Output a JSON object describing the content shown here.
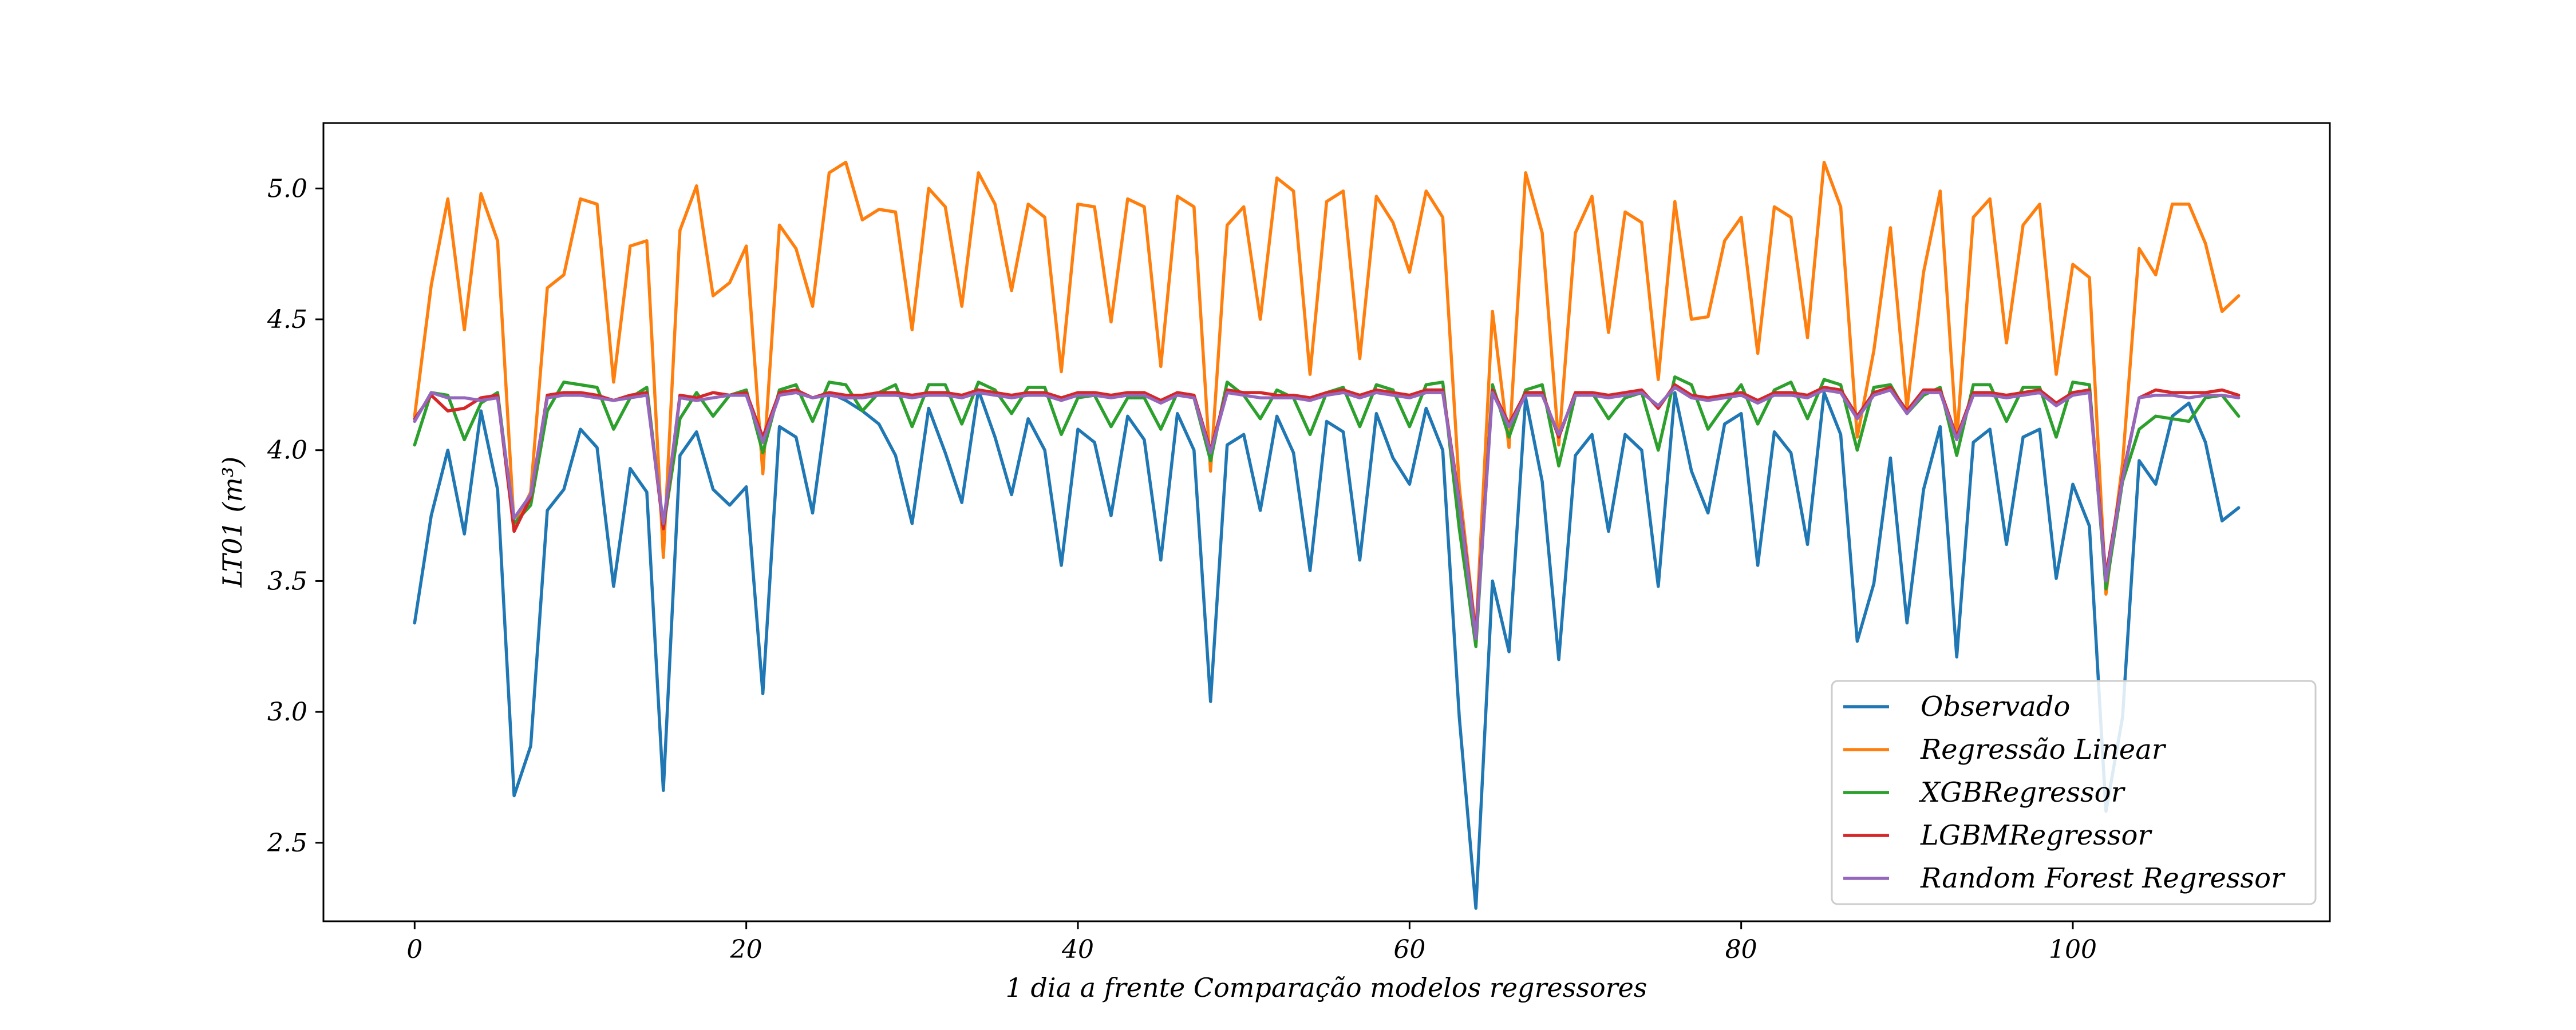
{
  "chart_data": {
    "type": "line",
    "title": "",
    "xlabel": "1 dia a frente Comparação modelos regressores",
    "ylabel": "LT01 (m³)",
    "xlim": [
      -5.5,
      115.5
    ],
    "ylim": [
      2.2,
      5.25
    ],
    "xticks": [
      0,
      20,
      40,
      60,
      80,
      100
    ],
    "yticks": [
      2.5,
      3.0,
      3.5,
      4.0,
      4.5,
      5.0
    ],
    "xtick_labels": [
      "0",
      "20",
      "40",
      "60",
      "80",
      "100"
    ],
    "ytick_labels": [
      "2.5",
      "3.0",
      "3.5",
      "4.0",
      "4.5",
      "5.0"
    ],
    "grid": false,
    "legend_position": "lower right",
    "series": [
      {
        "name": "Observado",
        "color": "#1f77b4",
        "values": [
          3.34,
          3.75,
          4.0,
          3.68,
          4.15,
          3.85,
          2.68,
          2.87,
          3.77,
          3.85,
          4.08,
          4.01,
          3.48,
          3.93,
          3.84,
          2.7,
          3.98,
          4.07,
          3.85,
          3.79,
          3.86,
          3.07,
          4.09,
          4.05,
          3.76,
          4.22,
          4.19,
          4.15,
          4.1,
          3.98,
          3.72,
          4.16,
          3.99,
          3.8,
          4.23,
          4.05,
          3.83,
          4.12,
          4.0,
          3.56,
          4.08,
          4.03,
          3.75,
          4.13,
          4.04,
          3.58,
          4.14,
          4.0,
          3.04,
          4.02,
          4.06,
          3.77,
          4.13,
          3.99,
          3.54,
          4.11,
          4.07,
          3.58,
          4.14,
          3.97,
          3.87,
          4.16,
          4.0,
          2.98,
          2.25,
          3.5,
          3.23,
          4.2,
          3.88,
          3.2,
          3.98,
          4.06,
          3.69,
          4.06,
          4.0,
          3.48,
          4.22,
          3.92,
          3.76,
          4.1,
          4.14,
          3.56,
          4.07,
          3.99,
          3.64,
          4.22,
          4.06,
          3.27,
          3.49,
          3.97,
          3.34,
          3.85,
          4.09,
          3.21,
          4.03,
          4.08,
          3.64,
          4.05,
          4.08,
          3.51,
          3.87,
          3.71,
          2.62,
          2.98,
          3.96,
          3.87,
          4.13,
          4.18,
          4.03,
          3.73,
          3.78
        ]
      },
      {
        "name": "Regressão Linear",
        "color": "#ff7f0e",
        "values": [
          4.13,
          4.63,
          4.96,
          4.46,
          4.98,
          4.8,
          3.71,
          3.84,
          4.62,
          4.67,
          4.96,
          4.94,
          4.26,
          4.78,
          4.8,
          3.59,
          4.84,
          5.01,
          4.59,
          4.64,
          4.78,
          3.91,
          4.86,
          4.77,
          4.55,
          5.06,
          5.1,
          4.88,
          4.92,
          4.91,
          4.46,
          5.0,
          4.93,
          4.55,
          5.06,
          4.94,
          4.61,
          4.94,
          4.89,
          4.3,
          4.94,
          4.93,
          4.49,
          4.96,
          4.93,
          4.32,
          4.97,
          4.93,
          3.92,
          4.86,
          4.93,
          4.5,
          5.04,
          4.99,
          4.29,
          4.95,
          4.99,
          4.35,
          4.97,
          4.87,
          4.68,
          4.99,
          4.89,
          3.86,
          3.3,
          4.53,
          4.01,
          5.06,
          4.83,
          4.02,
          4.83,
          4.97,
          4.45,
          4.91,
          4.87,
          4.27,
          4.95,
          4.5,
          4.51,
          4.8,
          4.89,
          4.37,
          4.93,
          4.89,
          4.43,
          5.1,
          4.93,
          4.05,
          4.38,
          4.85,
          4.16,
          4.68,
          4.99,
          4.04,
          4.89,
          4.96,
          4.41,
          4.86,
          4.94,
          4.29,
          4.71,
          4.66,
          3.45,
          3.95,
          4.77,
          4.67,
          4.94,
          4.94,
          4.79,
          4.53,
          4.59
        ]
      },
      {
        "name": "XGBRegressor",
        "color": "#2ca02c",
        "values": [
          4.02,
          4.22,
          4.21,
          4.04,
          4.18,
          4.22,
          3.72,
          3.79,
          4.15,
          4.26,
          4.25,
          4.24,
          4.08,
          4.2,
          4.24,
          3.7,
          4.12,
          4.22,
          4.13,
          4.21,
          4.23,
          3.99,
          4.23,
          4.25,
          4.11,
          4.26,
          4.25,
          4.15,
          4.22,
          4.25,
          4.09,
          4.25,
          4.25,
          4.1,
          4.26,
          4.23,
          4.14,
          4.24,
          4.24,
          4.06,
          4.2,
          4.21,
          4.09,
          4.2,
          4.2,
          4.08,
          4.22,
          4.2,
          3.96,
          4.26,
          4.21,
          4.12,
          4.23,
          4.2,
          4.06,
          4.22,
          4.24,
          4.09,
          4.25,
          4.23,
          4.09,
          4.25,
          4.26,
          3.7,
          3.25,
          4.25,
          4.05,
          4.23,
          4.25,
          3.94,
          4.21,
          4.22,
          4.12,
          4.2,
          4.22,
          4.0,
          4.28,
          4.25,
          4.08,
          4.17,
          4.25,
          4.1,
          4.23,
          4.26,
          4.12,
          4.27,
          4.25,
          4.0,
          4.24,
          4.25,
          4.14,
          4.21,
          4.24,
          3.98,
          4.25,
          4.25,
          4.11,
          4.24,
          4.24,
          4.05,
          4.26,
          4.25,
          3.47,
          3.88,
          4.08,
          4.13,
          4.12,
          4.11,
          4.2,
          4.21,
          4.13
        ]
      },
      {
        "name": "LGBMRegressor",
        "color": "#d62728",
        "values": [
          4.12,
          4.21,
          4.15,
          4.16,
          4.2,
          4.21,
          3.69,
          3.82,
          4.21,
          4.22,
          4.22,
          4.21,
          4.19,
          4.21,
          4.22,
          3.7,
          4.21,
          4.2,
          4.22,
          4.21,
          4.22,
          4.05,
          4.22,
          4.23,
          4.2,
          4.22,
          4.21,
          4.21,
          4.22,
          4.22,
          4.21,
          4.22,
          4.22,
          4.21,
          4.23,
          4.22,
          4.21,
          4.22,
          4.22,
          4.2,
          4.22,
          4.22,
          4.21,
          4.22,
          4.22,
          4.19,
          4.22,
          4.21,
          4.0,
          4.23,
          4.22,
          4.22,
          4.21,
          4.21,
          4.2,
          4.22,
          4.23,
          4.21,
          4.23,
          4.22,
          4.21,
          4.23,
          4.23,
          3.81,
          3.3,
          4.23,
          4.1,
          4.22,
          4.22,
          4.05,
          4.22,
          4.22,
          4.21,
          4.22,
          4.23,
          4.16,
          4.25,
          4.21,
          4.2,
          4.21,
          4.22,
          4.19,
          4.22,
          4.22,
          4.21,
          4.24,
          4.23,
          4.13,
          4.22,
          4.24,
          4.15,
          4.23,
          4.23,
          4.05,
          4.22,
          4.22,
          4.21,
          4.22,
          4.23,
          4.18,
          4.22,
          4.23,
          3.52,
          3.9,
          4.2,
          4.23,
          4.22,
          4.22,
          4.22,
          4.23,
          4.21
        ]
      },
      {
        "name": "Random Forest Regressor",
        "color": "#9467bd",
        "values": [
          4.11,
          4.22,
          4.2,
          4.2,
          4.19,
          4.2,
          3.74,
          3.83,
          4.2,
          4.21,
          4.21,
          4.2,
          4.19,
          4.2,
          4.21,
          3.72,
          4.2,
          4.19,
          4.2,
          4.21,
          4.21,
          4.03,
          4.21,
          4.22,
          4.2,
          4.21,
          4.2,
          4.2,
          4.21,
          4.21,
          4.2,
          4.21,
          4.21,
          4.2,
          4.22,
          4.21,
          4.2,
          4.21,
          4.21,
          4.19,
          4.21,
          4.21,
          4.2,
          4.21,
          4.21,
          4.18,
          4.21,
          4.2,
          3.99,
          4.22,
          4.21,
          4.2,
          4.2,
          4.2,
          4.19,
          4.21,
          4.22,
          4.2,
          4.22,
          4.21,
          4.2,
          4.22,
          4.22,
          3.8,
          3.28,
          4.22,
          4.09,
          4.21,
          4.21,
          4.06,
          4.21,
          4.21,
          4.2,
          4.21,
          4.22,
          4.17,
          4.24,
          4.2,
          4.19,
          4.2,
          4.21,
          4.18,
          4.21,
          4.21,
          4.2,
          4.23,
          4.22,
          4.12,
          4.21,
          4.23,
          4.14,
          4.22,
          4.22,
          4.04,
          4.21,
          4.21,
          4.2,
          4.21,
          4.22,
          4.17,
          4.21,
          4.22,
          3.5,
          3.89,
          4.2,
          4.21,
          4.21,
          4.2,
          4.21,
          4.21,
          4.2
        ]
      }
    ]
  }
}
